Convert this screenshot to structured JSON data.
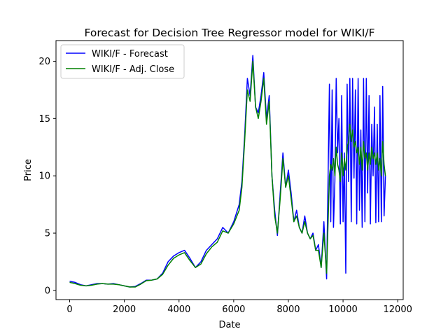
{
  "chart_data": {
    "type": "line",
    "title": "Forecast for Decision Tree Regressor model for WIKI/F",
    "xlabel": "Date",
    "ylabel": "Price",
    "xlim": [
      -500,
      12200
    ],
    "ylim": [
      -0.8,
      21.8
    ],
    "xticks": [
      0,
      2000,
      4000,
      6000,
      8000,
      10000,
      12000
    ],
    "xtick_labels": [
      "0",
      "2000",
      "4000",
      "6000",
      "8000",
      "10000",
      "12000"
    ],
    "yticks": [
      0,
      5,
      10,
      15,
      20
    ],
    "ytick_labels": [
      "0",
      "5",
      "10",
      "15",
      "20"
    ],
    "grid": false,
    "legend": "upper-left",
    "series": [
      {
        "name": "WIKI/F - Forecast",
        "color": "#0000ff",
        "x": [
          0,
          200,
          400,
          600,
          800,
          1000,
          1200,
          1400,
          1600,
          1800,
          2000,
          2200,
          2400,
          2600,
          2800,
          3000,
          3200,
          3400,
          3600,
          3800,
          4000,
          4200,
          4400,
          4600,
          4800,
          5000,
          5200,
          5400,
          5600,
          5800,
          6000,
          6200,
          6300,
          6400,
          6500,
          6600,
          6700,
          6800,
          6900,
          7000,
          7100,
          7200,
          7300,
          7400,
          7500,
          7600,
          7700,
          7800,
          7900,
          8000,
          8100,
          8200,
          8300,
          8400,
          8500,
          8600,
          8700,
          8800,
          8900,
          9000,
          9100,
          9200,
          9300,
          9400,
          9500,
          9550,
          9600,
          9650,
          9700,
          9750,
          9800,
          9850,
          9900,
          9950,
          10000,
          10050,
          10100,
          10150,
          10200,
          10250,
          10300,
          10350,
          10400,
          10450,
          10500,
          10550,
          10600,
          10650,
          10700,
          10750,
          10800,
          10850,
          10900,
          10950,
          11000,
          11050,
          11100,
          11150,
          11200,
          11250,
          11300,
          11350,
          11400,
          11450,
          11500,
          11550
        ],
        "values": [
          0.8,
          0.7,
          0.5,
          0.4,
          0.5,
          0.6,
          0.6,
          0.55,
          0.6,
          0.5,
          0.4,
          0.3,
          0.35,
          0.6,
          0.9,
          0.9,
          1.0,
          1.5,
          2.5,
          3.0,
          3.3,
          3.5,
          2.8,
          2.0,
          2.5,
          3.5,
          4.0,
          4.5,
          5.5,
          5.0,
          6.0,
          7.5,
          9.5,
          13.5,
          18.5,
          17.0,
          20.5,
          16.0,
          15.5,
          17.0,
          19.0,
          15.0,
          17.0,
          10.0,
          7.0,
          4.8,
          8.5,
          12.0,
          9.0,
          10.5,
          8.5,
          6.0,
          7.0,
          5.5,
          5.0,
          6.5,
          5.0,
          4.5,
          5.0,
          3.5,
          4.0,
          2.0,
          6.0,
          1.0,
          18.0,
          6.0,
          17.5,
          5.5,
          9.5,
          18.5,
          12.0,
          15.0,
          5.8,
          17.0,
          6.0,
          12.0,
          1.5,
          18.0,
          9.5,
          18.5,
          6.0,
          18.5,
          9.8,
          17.5,
          5.8,
          18.5,
          7.0,
          14.0,
          5.5,
          18.5,
          6.0,
          18.5,
          8.5,
          17.0,
          5.8,
          14.5,
          10.0,
          16.0,
          5.9,
          14.5,
          6.0,
          17.0,
          6.0,
          17.8,
          6.5,
          10.0
        ]
      },
      {
        "name": "WIKI/F - Adj. Close",
        "color": "#008000",
        "x": [
          0,
          200,
          400,
          600,
          800,
          1000,
          1200,
          1400,
          1600,
          1800,
          2000,
          2200,
          2400,
          2600,
          2800,
          3000,
          3200,
          3400,
          3600,
          3800,
          4000,
          4200,
          4400,
          4600,
          4800,
          5000,
          5200,
          5400,
          5600,
          5800,
          6000,
          6200,
          6300,
          6400,
          6500,
          6600,
          6700,
          6800,
          6900,
          7000,
          7100,
          7200,
          7300,
          7400,
          7500,
          7600,
          7700,
          7800,
          7900,
          8000,
          8100,
          8200,
          8300,
          8400,
          8500,
          8600,
          8700,
          8800,
          8900,
          9000,
          9100,
          9200,
          9300,
          9400,
          9500,
          9550,
          9600,
          9650,
          9700,
          9750,
          9800,
          9850,
          9900,
          9950,
          10000,
          10050,
          10100,
          10150,
          10200,
          10250,
          10300,
          10350,
          10400,
          10450,
          10500,
          10550,
          10600,
          10650,
          10700,
          10750,
          10800,
          10850,
          10900,
          10950,
          11000,
          11050,
          11100,
          11150,
          11200,
          11250,
          11300,
          11350,
          11400,
          11450,
          11500,
          11550
        ],
        "values": [
          0.7,
          0.6,
          0.45,
          0.4,
          0.45,
          0.55,
          0.6,
          0.55,
          0.55,
          0.5,
          0.4,
          0.3,
          0.3,
          0.55,
          0.85,
          0.9,
          1.0,
          1.4,
          2.2,
          2.8,
          3.1,
          3.3,
          2.6,
          2.0,
          2.3,
          3.2,
          3.8,
          4.2,
          5.2,
          5.0,
          5.8,
          7.0,
          9.0,
          13.0,
          17.5,
          16.5,
          20.0,
          16.0,
          15.0,
          16.5,
          18.5,
          14.5,
          16.5,
          10.0,
          6.5,
          5.0,
          8.0,
          11.5,
          9.0,
          10.0,
          8.0,
          6.0,
          6.5,
          5.5,
          5.0,
          6.0,
          5.0,
          4.5,
          4.8,
          3.5,
          3.5,
          2.0,
          5.0,
          1.5,
          10.0,
          11.0,
          10.5,
          11.5,
          10.0,
          12.5,
          11.0,
          10.5,
          9.5,
          12.0,
          10.0,
          11.5,
          10.5,
          12.5,
          13.0,
          14.5,
          13.0,
          14.0,
          12.5,
          13.0,
          12.0,
          12.5,
          11.0,
          12.5,
          10.5,
          13.0,
          11.5,
          12.0,
          10.5,
          12.0,
          11.0,
          12.5,
          11.5,
          12.0,
          11.0,
          12.0,
          10.5,
          11.5,
          10.0,
          13.0,
          11.0,
          10.0
        ]
      }
    ]
  }
}
